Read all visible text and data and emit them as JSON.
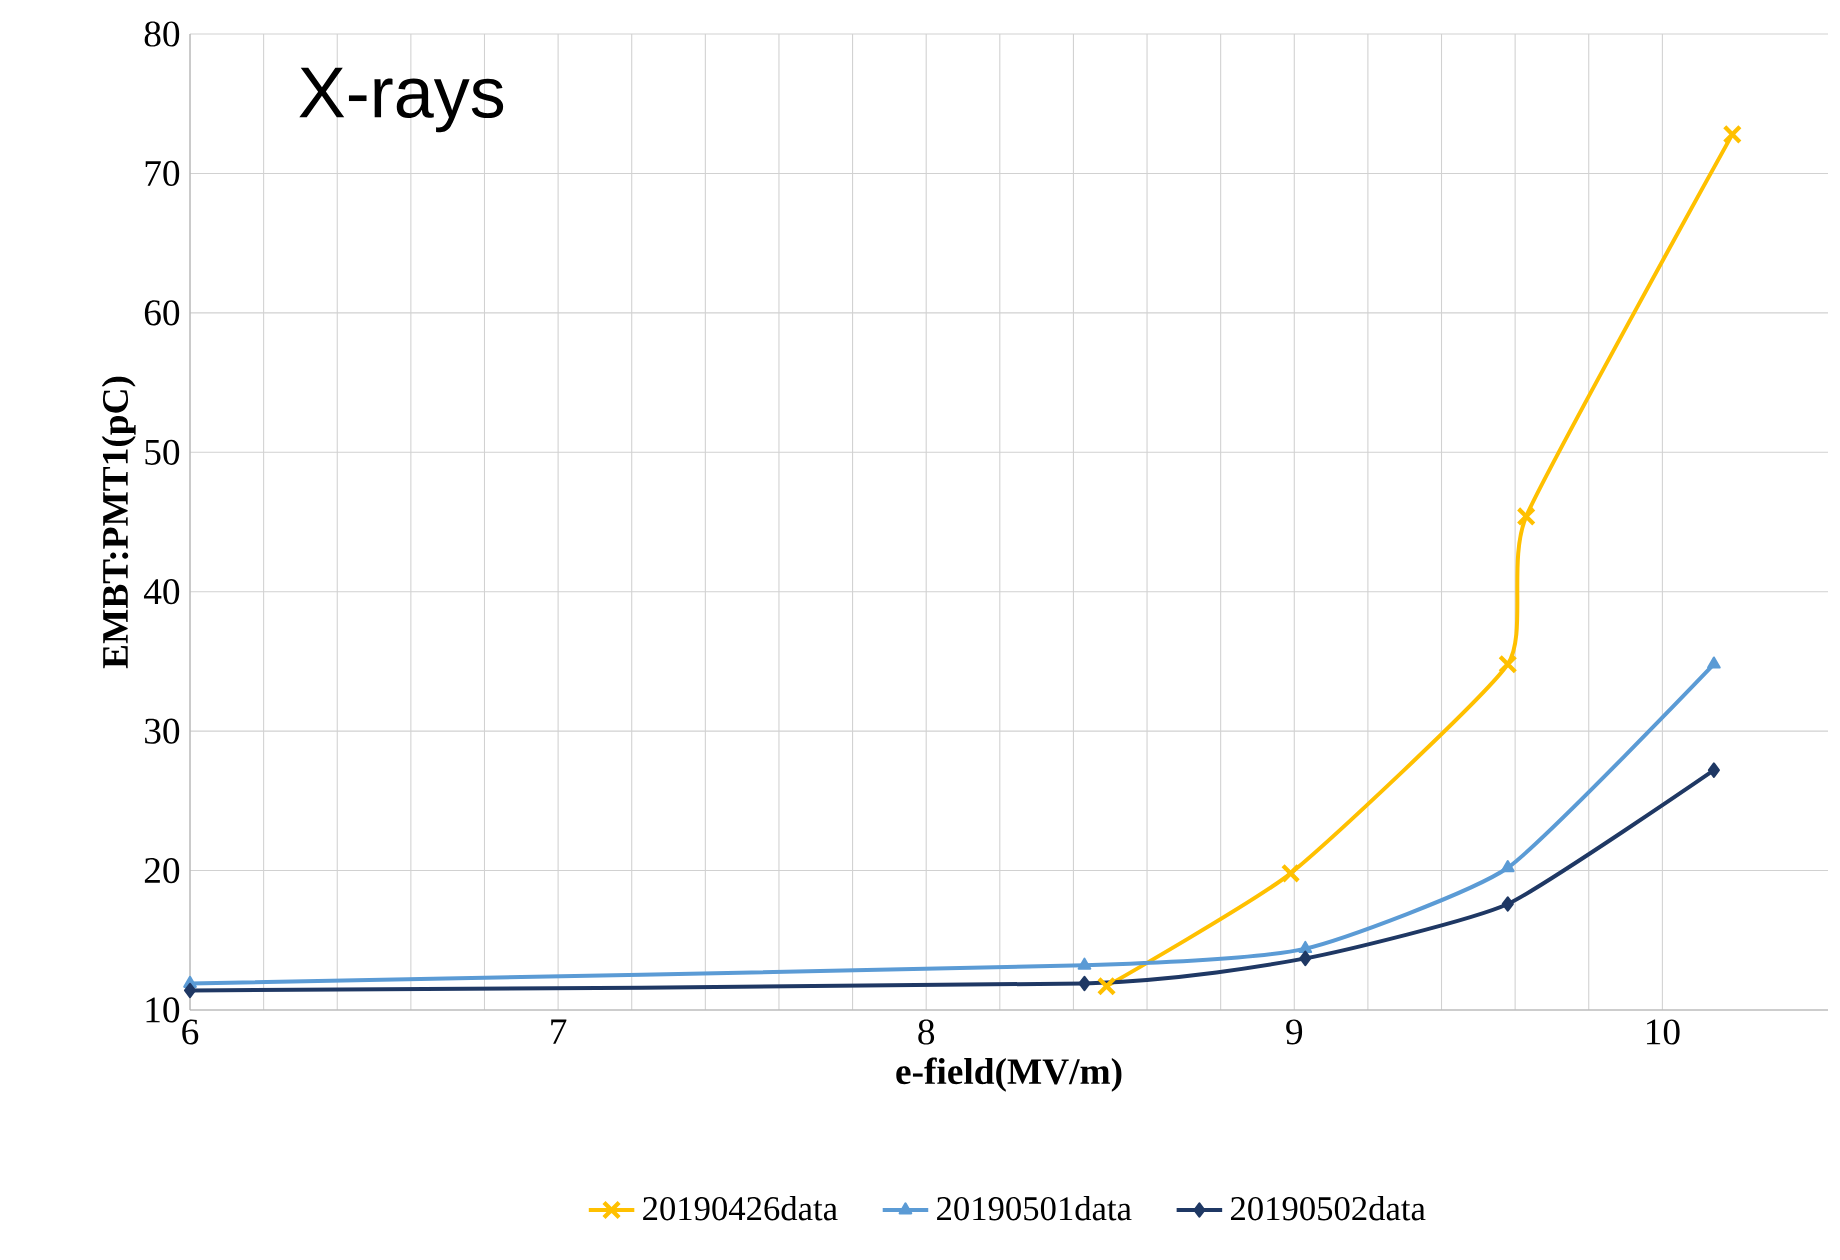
{
  "chart_data": {
    "type": "line",
    "title": "X-rays",
    "xlabel": "e-field(MV/m)",
    "ylabel": "EMBT:PMT1(pC)",
    "xlim": [
      6,
      10.45
    ],
    "xticks": [
      6,
      7,
      8,
      9,
      10
    ],
    "ylim": [
      10,
      80
    ],
    "yticks": [
      10,
      20,
      30,
      40,
      50,
      60,
      70,
      80
    ],
    "grid": true,
    "legend": "bottom",
    "series": [
      {
        "name": "20190426data",
        "color": "#ffc000",
        "marker": "cross",
        "x": [
          8.49,
          8.99,
          9.58,
          9.63,
          10.19
        ],
        "values": [
          11.7,
          19.8,
          34.8,
          45.4,
          72.8
        ]
      },
      {
        "name": "20190501data",
        "color": "#5b9bd5",
        "marker": "triangle",
        "x": [
          6,
          8.43,
          9.03,
          9.58,
          10.14
        ],
        "values": [
          11.9,
          13.2,
          14.4,
          20.2,
          34.8
        ]
      },
      {
        "name": "20190502data",
        "color": "#1f3864",
        "marker": "diamond",
        "x": [
          6,
          8.43,
          9.03,
          9.58,
          10.14
        ],
        "values": [
          11.4,
          11.9,
          13.7,
          17.6,
          27.2
        ]
      }
    ]
  }
}
